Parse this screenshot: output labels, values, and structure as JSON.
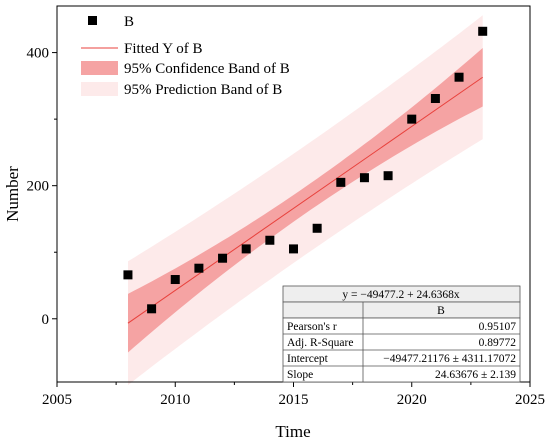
{
  "chart_data": {
    "type": "scatter",
    "xlabel": "Time",
    "ylabel": "Number",
    "xlim": [
      2005,
      2025
    ],
    "ylim": [
      -95,
      470
    ],
    "x_ticks": [
      2005,
      2010,
      2015,
      2020,
      2025
    ],
    "y_ticks": [
      0,
      200,
      400
    ],
    "grid": false,
    "legend_position": "top-left",
    "series": [
      {
        "name": "B",
        "x": [
          2008,
          2009,
          2010,
          2011,
          2012,
          2013,
          2014,
          2015,
          2016,
          2017,
          2018,
          2019,
          2020,
          2021,
          2022,
          2023
        ],
        "y": [
          66,
          15,
          59,
          76,
          91,
          105,
          118,
          105,
          136,
          205,
          212,
          215,
          300,
          331,
          363,
          432
        ],
        "marker": "square",
        "color": "#000000"
      }
    ],
    "fit": {
      "name": "Fitted Y of B",
      "intercept": -49477.21176,
      "slope": 24.63676,
      "x_range": [
        2008,
        2023
      ],
      "color": "#e8413c"
    },
    "bands": {
      "confidence": {
        "name": "95% Confidence Band of B",
        "color": "#f5a3a3",
        "half_width_ends": 44,
        "half_width_center": 20
      },
      "prediction": {
        "name": "95% Prediction Band of B",
        "color": "#fdeaea",
        "half_width_ends": 93,
        "half_width_center": 82
      }
    },
    "stats_table": {
      "equation": "y = −49477.2 + 24.6368x",
      "column_header": "B",
      "rows": [
        {
          "label": "Pearson's r",
          "value": "0.95107"
        },
        {
          "label": "Adj. R-Square",
          "value": "0.89772"
        },
        {
          "label": "Intercept",
          "value": "−49477.21176 ± 4311.17072"
        },
        {
          "label": "Slope",
          "value": "24.63676 ± 2.139"
        }
      ]
    }
  }
}
